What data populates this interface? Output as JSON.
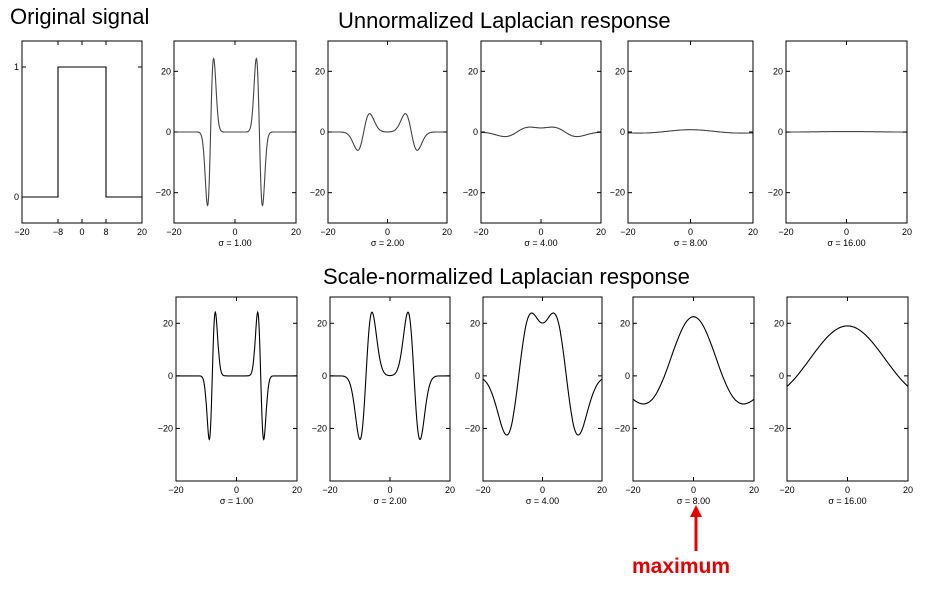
{
  "titles": {
    "original": "Original signal",
    "unnormalized": "Unnormalized Laplacian response",
    "normalized": "Scale-normalized Laplacian response"
  },
  "annotation": {
    "text": "maximum",
    "color": "#e60000"
  },
  "chart_data": [
    {
      "type": "line",
      "id": "orig",
      "title": "Original signal",
      "xlim": [
        -20,
        20
      ],
      "ylim": [
        -0.2,
        1.2
      ],
      "xticks": [
        -20,
        -8,
        0,
        8,
        20
      ],
      "yticks": [
        0,
        1
      ],
      "x": [
        -20,
        -8,
        -8,
        8,
        8,
        20
      ],
      "y": [
        0,
        0,
        1,
        1,
        0,
        0
      ]
    },
    {
      "type": "line",
      "id": "u1",
      "group": "unnormalized",
      "sigma": 1,
      "xlabel": "σ = 1.00",
      "xlim": [
        -20,
        20
      ],
      "ylim": [
        -30,
        30
      ],
      "xticks": [
        -20,
        0,
        20
      ],
      "yticks": [
        -20,
        0,
        20
      ]
    },
    {
      "type": "line",
      "id": "u2",
      "group": "unnormalized",
      "sigma": 2,
      "xlabel": "σ = 2.00",
      "xlim": [
        -20,
        20
      ],
      "ylim": [
        -30,
        30
      ],
      "xticks": [
        -20,
        0,
        20
      ],
      "yticks": [
        -20,
        0,
        20
      ]
    },
    {
      "type": "line",
      "id": "u4",
      "group": "unnormalized",
      "sigma": 4,
      "xlabel": "σ = 4.00",
      "xlim": [
        -20,
        20
      ],
      "ylim": [
        -30,
        30
      ],
      "xticks": [
        -20,
        0,
        20
      ],
      "yticks": [
        -20,
        0,
        20
      ]
    },
    {
      "type": "line",
      "id": "u8",
      "group": "unnormalized",
      "sigma": 8,
      "xlabel": "σ = 8.00",
      "xlim": [
        -20,
        20
      ],
      "ylim": [
        -30,
        30
      ],
      "xticks": [
        -20,
        0,
        20
      ],
      "yticks": [
        -20,
        0,
        20
      ]
    },
    {
      "type": "line",
      "id": "u16",
      "group": "unnormalized",
      "sigma": 16,
      "xlabel": "σ = 16.00",
      "xlim": [
        -20,
        20
      ],
      "ylim": [
        -30,
        30
      ],
      "xticks": [
        -20,
        0,
        20
      ],
      "yticks": [
        -20,
        0,
        20
      ]
    },
    {
      "type": "line",
      "id": "n1",
      "group": "normalized",
      "sigma": 1,
      "xlabel": "σ = 1.00",
      "xlim": [
        -20,
        20
      ],
      "ylim": [
        -40,
        30
      ],
      "xticks": [
        -20,
        0,
        20
      ],
      "yticks": [
        -20,
        0,
        20
      ]
    },
    {
      "type": "line",
      "id": "n2",
      "group": "normalized",
      "sigma": 2,
      "xlabel": "σ = 2.00",
      "xlim": [
        -20,
        20
      ],
      "ylim": [
        -40,
        30
      ],
      "xticks": [
        -20,
        0,
        20
      ],
      "yticks": [
        -20,
        0,
        20
      ]
    },
    {
      "type": "line",
      "id": "n4",
      "group": "normalized",
      "sigma": 4,
      "xlabel": "σ = 4.00",
      "xlim": [
        -20,
        20
      ],
      "ylim": [
        -40,
        30
      ],
      "xticks": [
        -20,
        0,
        20
      ],
      "yticks": [
        -20,
        0,
        20
      ]
    },
    {
      "type": "line",
      "id": "n8",
      "group": "normalized",
      "sigma": 8,
      "xlabel": "σ = 8.00",
      "xlim": [
        -20,
        20
      ],
      "ylim": [
        -40,
        30
      ],
      "xticks": [
        -20,
        0,
        20
      ],
      "yticks": [
        -20,
        0,
        20
      ]
    },
    {
      "type": "line",
      "id": "n16",
      "group": "normalized",
      "sigma": 16,
      "xlabel": "σ = 16.00",
      "xlim": [
        -20,
        20
      ],
      "ylim": [
        -40,
        30
      ],
      "xticks": [
        -20,
        0,
        20
      ],
      "yticks": [
        -20,
        0,
        20
      ]
    }
  ]
}
